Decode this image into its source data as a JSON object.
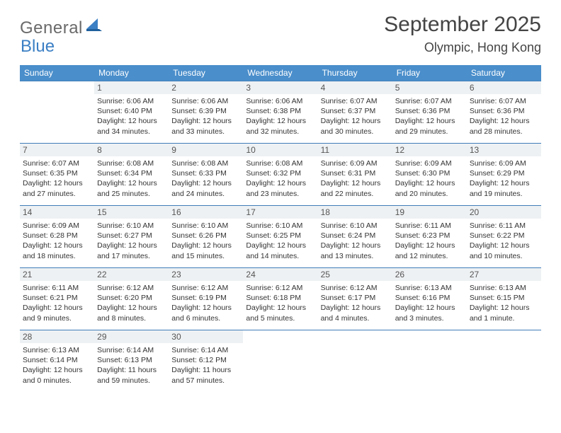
{
  "logo": {
    "general": "General",
    "blue": "Blue"
  },
  "title": "September 2025",
  "location": "Olympic, Hong Kong",
  "colors": {
    "header_bg": "#4a8ecb",
    "header_fg": "#ffffff",
    "row_rule": "#3f7db8",
    "daynum_bg": "#eef1f3",
    "text": "#333333",
    "logo_gray": "#6a6a6a",
    "logo_blue": "#3b7fc4"
  },
  "weekdays": [
    "Sunday",
    "Monday",
    "Tuesday",
    "Wednesday",
    "Thursday",
    "Friday",
    "Saturday"
  ],
  "start_weekday": 1,
  "num_days": 30,
  "days": {
    "1": {
      "sunrise": "6:06 AM",
      "sunset": "6:40 PM",
      "daylight": "12 hours and 34 minutes."
    },
    "2": {
      "sunrise": "6:06 AM",
      "sunset": "6:39 PM",
      "daylight": "12 hours and 33 minutes."
    },
    "3": {
      "sunrise": "6:06 AM",
      "sunset": "6:38 PM",
      "daylight": "12 hours and 32 minutes."
    },
    "4": {
      "sunrise": "6:07 AM",
      "sunset": "6:37 PM",
      "daylight": "12 hours and 30 minutes."
    },
    "5": {
      "sunrise": "6:07 AM",
      "sunset": "6:36 PM",
      "daylight": "12 hours and 29 minutes."
    },
    "6": {
      "sunrise": "6:07 AM",
      "sunset": "6:36 PM",
      "daylight": "12 hours and 28 minutes."
    },
    "7": {
      "sunrise": "6:07 AM",
      "sunset": "6:35 PM",
      "daylight": "12 hours and 27 minutes."
    },
    "8": {
      "sunrise": "6:08 AM",
      "sunset": "6:34 PM",
      "daylight": "12 hours and 25 minutes."
    },
    "9": {
      "sunrise": "6:08 AM",
      "sunset": "6:33 PM",
      "daylight": "12 hours and 24 minutes."
    },
    "10": {
      "sunrise": "6:08 AM",
      "sunset": "6:32 PM",
      "daylight": "12 hours and 23 minutes."
    },
    "11": {
      "sunrise": "6:09 AM",
      "sunset": "6:31 PM",
      "daylight": "12 hours and 22 minutes."
    },
    "12": {
      "sunrise": "6:09 AM",
      "sunset": "6:30 PM",
      "daylight": "12 hours and 20 minutes."
    },
    "13": {
      "sunrise": "6:09 AM",
      "sunset": "6:29 PM",
      "daylight": "12 hours and 19 minutes."
    },
    "14": {
      "sunrise": "6:09 AM",
      "sunset": "6:28 PM",
      "daylight": "12 hours and 18 minutes."
    },
    "15": {
      "sunrise": "6:10 AM",
      "sunset": "6:27 PM",
      "daylight": "12 hours and 17 minutes."
    },
    "16": {
      "sunrise": "6:10 AM",
      "sunset": "6:26 PM",
      "daylight": "12 hours and 15 minutes."
    },
    "17": {
      "sunrise": "6:10 AM",
      "sunset": "6:25 PM",
      "daylight": "12 hours and 14 minutes."
    },
    "18": {
      "sunrise": "6:10 AM",
      "sunset": "6:24 PM",
      "daylight": "12 hours and 13 minutes."
    },
    "19": {
      "sunrise": "6:11 AM",
      "sunset": "6:23 PM",
      "daylight": "12 hours and 12 minutes."
    },
    "20": {
      "sunrise": "6:11 AM",
      "sunset": "6:22 PM",
      "daylight": "12 hours and 10 minutes."
    },
    "21": {
      "sunrise": "6:11 AM",
      "sunset": "6:21 PM",
      "daylight": "12 hours and 9 minutes."
    },
    "22": {
      "sunrise": "6:12 AM",
      "sunset": "6:20 PM",
      "daylight": "12 hours and 8 minutes."
    },
    "23": {
      "sunrise": "6:12 AM",
      "sunset": "6:19 PM",
      "daylight": "12 hours and 6 minutes."
    },
    "24": {
      "sunrise": "6:12 AM",
      "sunset": "6:18 PM",
      "daylight": "12 hours and 5 minutes."
    },
    "25": {
      "sunrise": "6:12 AM",
      "sunset": "6:17 PM",
      "daylight": "12 hours and 4 minutes."
    },
    "26": {
      "sunrise": "6:13 AM",
      "sunset": "6:16 PM",
      "daylight": "12 hours and 3 minutes."
    },
    "27": {
      "sunrise": "6:13 AM",
      "sunset": "6:15 PM",
      "daylight": "12 hours and 1 minute."
    },
    "28": {
      "sunrise": "6:13 AM",
      "sunset": "6:14 PM",
      "daylight": "12 hours and 0 minutes."
    },
    "29": {
      "sunrise": "6:14 AM",
      "sunset": "6:13 PM",
      "daylight": "11 hours and 59 minutes."
    },
    "30": {
      "sunrise": "6:14 AM",
      "sunset": "6:12 PM",
      "daylight": "11 hours and 57 minutes."
    }
  },
  "labels": {
    "sunrise": "Sunrise:",
    "sunset": "Sunset:",
    "daylight": "Daylight:"
  }
}
